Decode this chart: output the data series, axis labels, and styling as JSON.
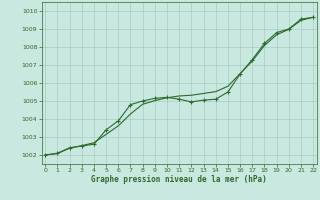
{
  "x_data": [
    0,
    1,
    2,
    3,
    4,
    5,
    6,
    7,
    8,
    9,
    10,
    11,
    12,
    13,
    14,
    15,
    16,
    17,
    18,
    19,
    20,
    21,
    22
  ],
  "y_actual": [
    1002.0,
    1002.1,
    1002.4,
    1002.5,
    1002.6,
    1003.4,
    1003.9,
    1004.8,
    1005.0,
    1005.15,
    1005.2,
    1005.1,
    1004.95,
    1005.05,
    1005.1,
    1005.5,
    1006.5,
    1007.3,
    1008.2,
    1008.8,
    1009.0,
    1009.55,
    1009.65
  ],
  "y_trend": [
    1002.0,
    1002.08,
    1002.38,
    1002.52,
    1002.68,
    1003.15,
    1003.62,
    1004.28,
    1004.82,
    1005.02,
    1005.18,
    1005.28,
    1005.32,
    1005.42,
    1005.52,
    1005.82,
    1006.52,
    1007.22,
    1008.08,
    1008.68,
    1008.98,
    1009.48,
    1009.65
  ],
  "line_color": "#2d6a2d",
  "bg_color": "#c8e8e0",
  "grid_color": "#a8ccc4",
  "xlabel": "Graphe pression niveau de la mer (hPa)",
  "ylim": [
    1001.5,
    1010.5
  ],
  "xlim": [
    -0.3,
    22.3
  ],
  "yticks": [
    1002,
    1003,
    1004,
    1005,
    1006,
    1007,
    1008,
    1009,
    1010
  ],
  "xticks": [
    0,
    1,
    2,
    3,
    4,
    5,
    6,
    7,
    8,
    9,
    10,
    11,
    12,
    13,
    14,
    15,
    16,
    17,
    18,
    19,
    20,
    21,
    22
  ]
}
